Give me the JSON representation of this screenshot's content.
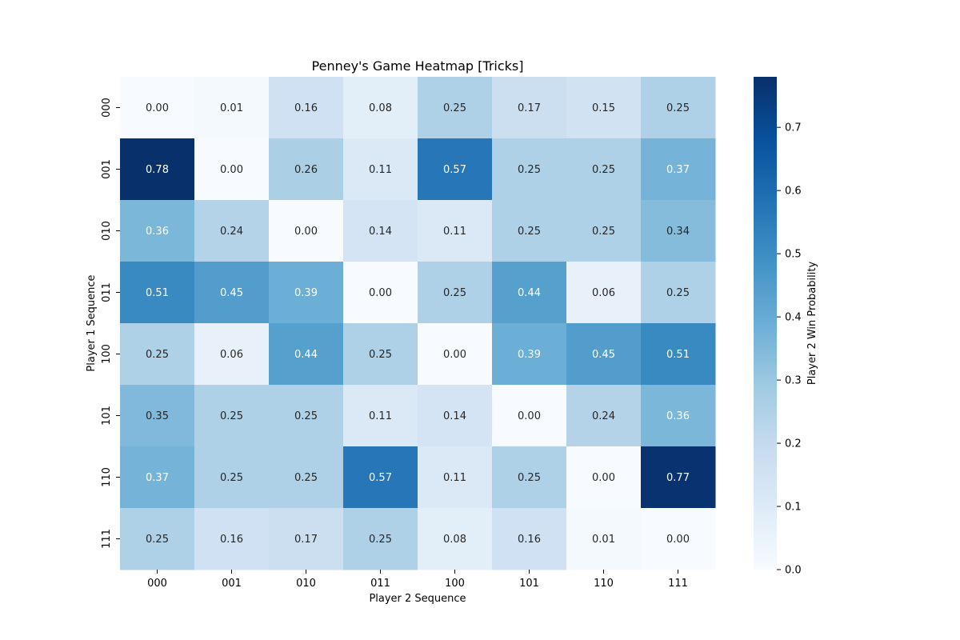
{
  "chart_data": {
    "type": "heatmap",
    "title": "Penney's Game Heatmap [Tricks]",
    "xlabel": "Player 2 Sequence",
    "ylabel": "Player 1 Sequence",
    "x_categories": [
      "000",
      "001",
      "010",
      "011",
      "100",
      "101",
      "110",
      "111"
    ],
    "y_categories": [
      "000",
      "001",
      "010",
      "011",
      "100",
      "101",
      "110",
      "111"
    ],
    "values": [
      [
        0.0,
        0.01,
        0.16,
        0.08,
        0.25,
        0.17,
        0.15,
        0.25
      ],
      [
        0.78,
        0.0,
        0.26,
        0.11,
        0.57,
        0.25,
        0.25,
        0.37
      ],
      [
        0.36,
        0.24,
        0.0,
        0.14,
        0.11,
        0.25,
        0.25,
        0.34
      ],
      [
        0.51,
        0.45,
        0.39,
        0.0,
        0.25,
        0.44,
        0.06,
        0.25
      ],
      [
        0.25,
        0.06,
        0.44,
        0.25,
        0.0,
        0.39,
        0.45,
        0.51
      ],
      [
        0.35,
        0.25,
        0.25,
        0.11,
        0.14,
        0.0,
        0.24,
        0.36
      ],
      [
        0.37,
        0.25,
        0.25,
        0.57,
        0.11,
        0.25,
        0.0,
        0.77
      ],
      [
        0.25,
        0.16,
        0.17,
        0.25,
        0.08,
        0.16,
        0.01,
        0.0
      ]
    ],
    "colorbar": {
      "label": "Player 2 Win Probability",
      "range": [
        0.0,
        0.78
      ],
      "ticks": [
        0.0,
        0.1,
        0.2,
        0.3,
        0.4,
        0.5,
        0.6,
        0.7
      ]
    },
    "colormap": "Blues",
    "colors": [
      "#f7fbff",
      "#deebf7",
      "#c6dbef",
      "#9ecae1",
      "#6baed6",
      "#4292c6",
      "#2171b5",
      "#08519c",
      "#08306b"
    ],
    "annotation_format": "2 decimals"
  }
}
